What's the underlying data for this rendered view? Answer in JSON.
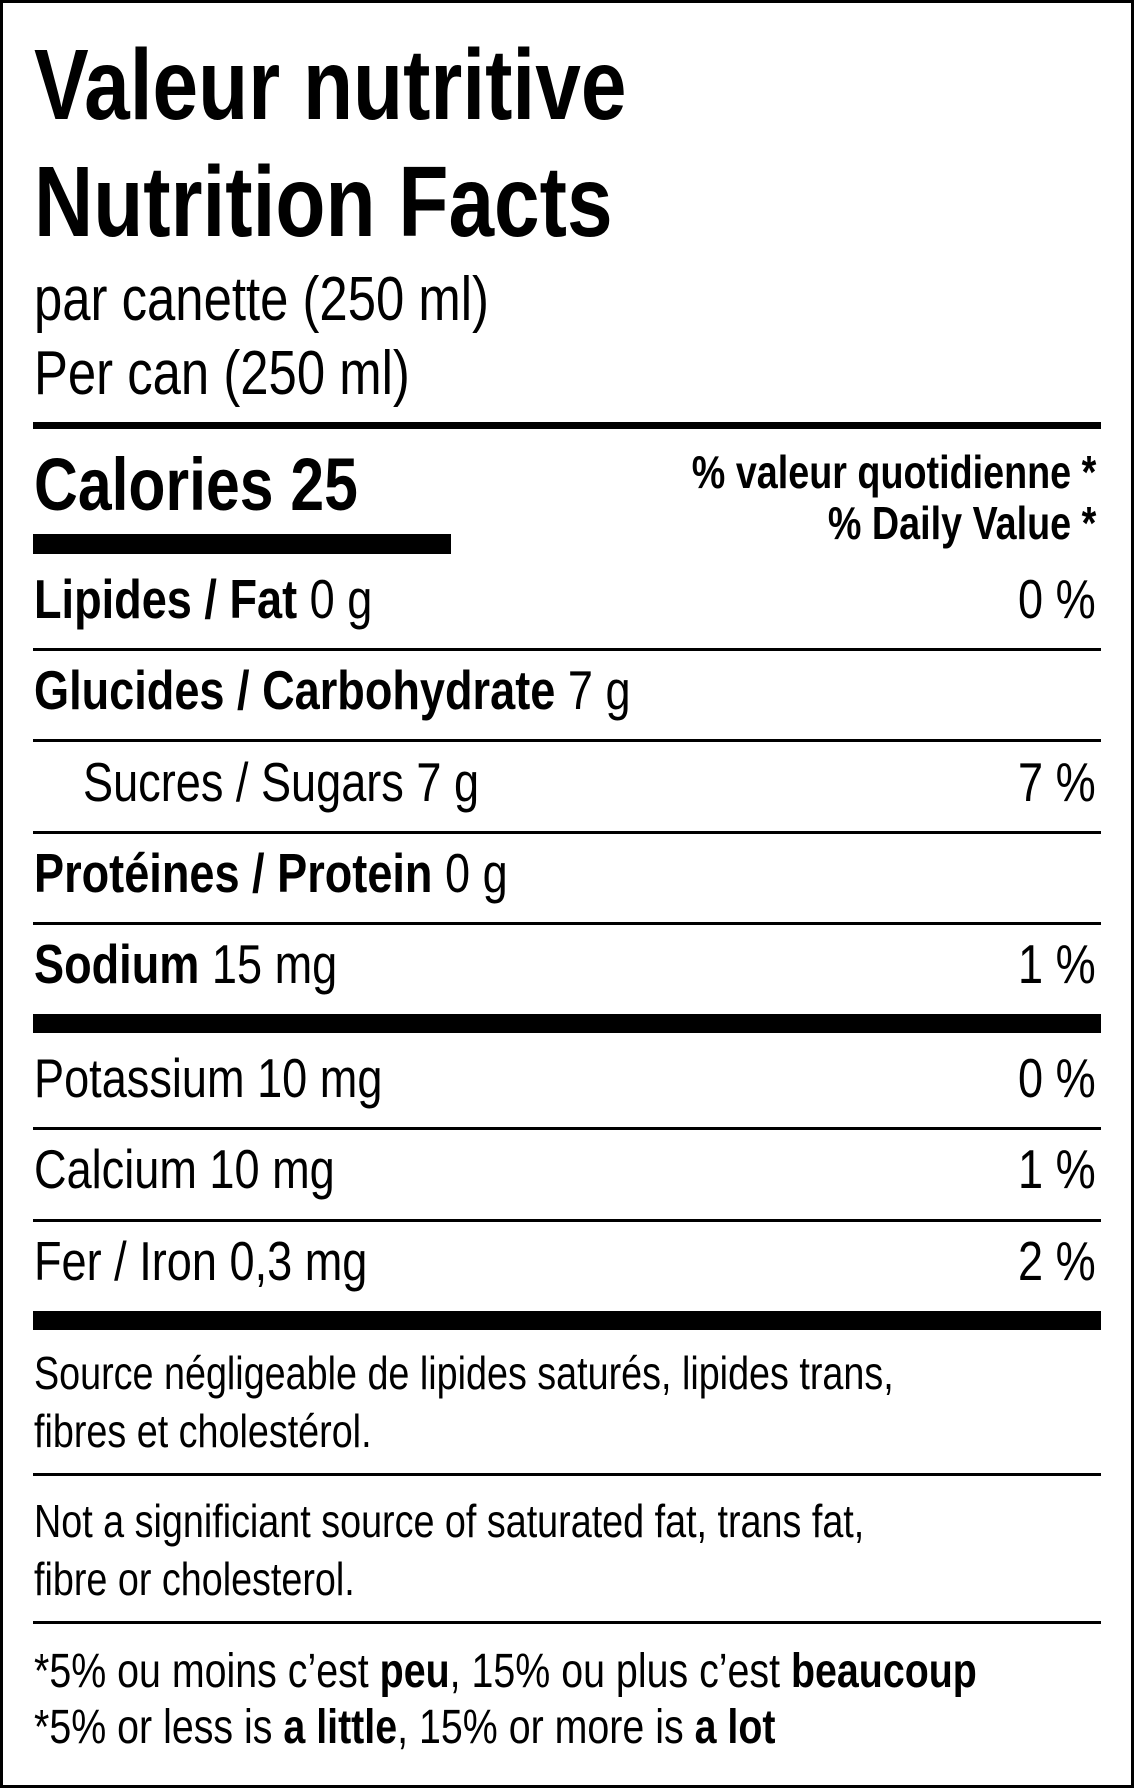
{
  "title_fr": "Valeur nutritive",
  "title_en": "Nutrition Facts",
  "serving_fr": "par canette (250 ml)",
  "serving_en": "Per can (250 ml)",
  "calories": "Calories 25",
  "dv_header_fr": "% valeur quotidienne *",
  "dv_header_en": "% Daily Value *",
  "rows": [
    {
      "label": "Lipides / Fat",
      "amount": "0 g",
      "dv": "0 %"
    },
    {
      "label": "Glucides / Carbohydrate",
      "amount": "7 g"
    },
    {
      "label": "Sucres / Sugars 7 g",
      "dv": "7 %"
    },
    {
      "label": "Protéines / Protein",
      "amount": "0 g"
    },
    {
      "label": "Sodium",
      "amount": "15 mg",
      "dv": "1 %"
    }
  ],
  "minerals": [
    {
      "label": "Potassium 10 mg",
      "dv": "0 %"
    },
    {
      "label": "Calcium 10 mg",
      "dv": "1 %"
    },
    {
      "label": "Fer / Iron 0,3 mg",
      "dv": "2 %"
    }
  ],
  "note_fr": [
    "Source négligeable de lipides saturés, lipides trans,",
    "fibres et cholestérol."
  ],
  "note_en": [
    "Not a significiant source of saturated fat, trans fat,",
    "fibre or cholesterol."
  ],
  "footnote_fr": [
    "*5% ou moins c’est ",
    "peu",
    ", 15% ou plus c’est ",
    "beaucoup"
  ],
  "footnote_en": [
    "*5% or less is ",
    "a little",
    ", 15% or more is ",
    "a lot"
  ]
}
